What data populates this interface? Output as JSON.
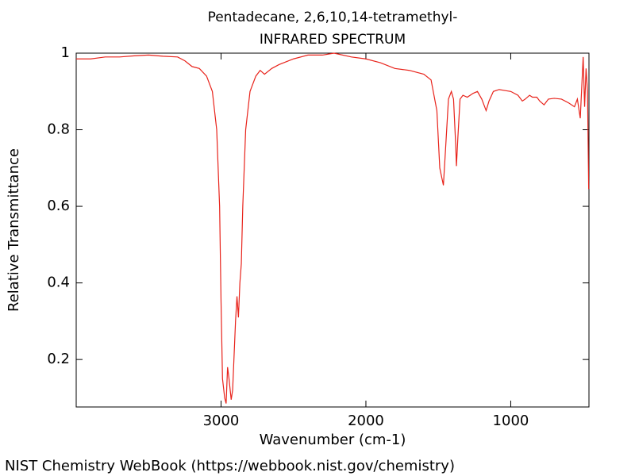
{
  "chart_data": {
    "type": "line",
    "title": "Pentadecane, 2,6,10,14-tetramethyl-",
    "subtitle": "INFRARED SPECTRUM",
    "x_label": "Wavenumber (cm-1)",
    "y_label": "Relative Transmittance",
    "footer": "NIST Chemistry WebBook (https://webbook.nist.gov/chemistry)",
    "xlim": [
      4000,
      460
    ],
    "ylim": [
      0.076,
      1
    ],
    "xticks": [
      3000,
      2000,
      1000
    ],
    "yticks": [
      0.2,
      0.4,
      0.6,
      0.8,
      1
    ],
    "grid": false,
    "series": [
      {
        "name": "spectrum",
        "color": "#e8231b",
        "x": [
          4000,
          3900,
          3800,
          3700,
          3600,
          3500,
          3400,
          3300,
          3250,
          3200,
          3150,
          3100,
          3060,
          3030,
          3010,
          3000,
          2990,
          2975,
          2965,
          2955,
          2945,
          2930,
          2920,
          2900,
          2890,
          2880,
          2870,
          2860,
          2850,
          2830,
          2800,
          2760,
          2730,
          2700,
          2650,
          2600,
          2500,
          2400,
          2300,
          2220,
          2100,
          2000,
          1900,
          1800,
          1700,
          1600,
          1550,
          1510,
          1490,
          1465,
          1450,
          1430,
          1410,
          1395,
          1380,
          1375,
          1365,
          1350,
          1330,
          1300,
          1260,
          1230,
          1200,
          1170,
          1150,
          1120,
          1080,
          1050,
          1000,
          950,
          920,
          900,
          870,
          850,
          820,
          800,
          770,
          740,
          700,
          650,
          600,
          560,
          540,
          520,
          500,
          490,
          480,
          470,
          462
        ],
        "values": [
          0.985,
          0.985,
          0.99,
          0.99,
          0.993,
          0.995,
          0.992,
          0.99,
          0.98,
          0.965,
          0.96,
          0.94,
          0.9,
          0.8,
          0.6,
          0.35,
          0.15,
          0.1,
          0.085,
          0.18,
          0.15,
          0.095,
          0.12,
          0.3,
          0.365,
          0.31,
          0.4,
          0.45,
          0.6,
          0.8,
          0.9,
          0.94,
          0.955,
          0.945,
          0.96,
          0.97,
          0.985,
          0.995,
          0.995,
          1.0,
          0.99,
          0.985,
          0.975,
          0.96,
          0.955,
          0.945,
          0.93,
          0.85,
          0.7,
          0.655,
          0.75,
          0.88,
          0.9,
          0.88,
          0.76,
          0.705,
          0.78,
          0.88,
          0.89,
          0.885,
          0.895,
          0.9,
          0.88,
          0.85,
          0.875,
          0.9,
          0.905,
          0.903,
          0.9,
          0.89,
          0.875,
          0.88,
          0.89,
          0.885,
          0.885,
          0.875,
          0.865,
          0.88,
          0.882,
          0.88,
          0.87,
          0.86,
          0.88,
          0.83,
          0.99,
          0.86,
          0.96,
          0.9,
          0.645
        ]
      }
    ]
  }
}
